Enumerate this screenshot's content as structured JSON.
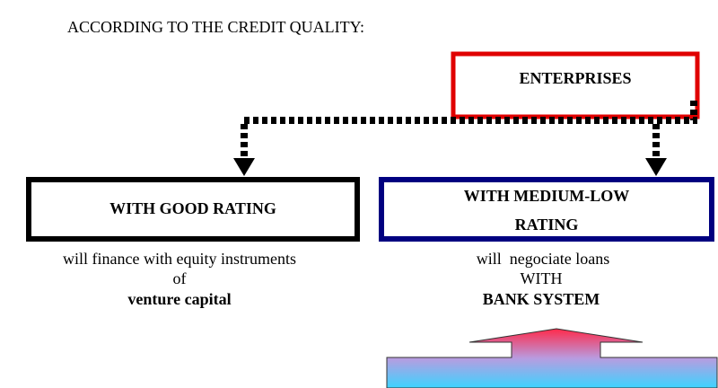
{
  "title": "ACCORDING TO THE CREDIT QUALITY:",
  "nodes": [
    {
      "label": "ENTERPRISES"
    },
    {
      "label": "WITH GOOD RATING",
      "description": [
        "will finance with equity instruments",
        "of",
        "venture capital"
      ]
    },
    {
      "label": [
        "WITH MEDIUM-LOW",
        "RATING"
      ],
      "description": [
        "will  negociate loans",
        "WITH",
        "BANK SYSTEM"
      ]
    }
  ]
}
